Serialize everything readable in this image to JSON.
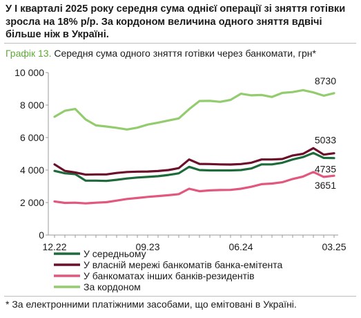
{
  "headline": "У І кварталі 2025 року середня сума однієї операції зі зняття готівки зросла на 18% р/р. За кордоном величина одного зняття вдвічі більше ніж в Україні.",
  "figure_number": "Графік 13.",
  "figure_caption": "Середня сума одного зняття готівки через банкомати, грн*",
  "footnote": "* За електронними платіжними засобами, що емітовані в Україні.",
  "colors": {
    "average": "#1d6b3b",
    "own_network": "#6b0f2a",
    "other_banks": "#e2577e",
    "abroad": "#93cc6e",
    "axis": "#9a9a9a"
  },
  "chart_data": {
    "type": "line",
    "title": "Середня сума одного зняття готівки через банкомати, грн*",
    "x": [
      "12.22",
      "01.23",
      "02.23",
      "03.23",
      "04.23",
      "05.23",
      "06.23",
      "07.23",
      "08.23",
      "09.23",
      "10.23",
      "11.23",
      "12.23",
      "01.24",
      "02.24",
      "03.24",
      "04.24",
      "05.24",
      "06.24",
      "07.24",
      "08.24",
      "09.24",
      "10.24",
      "11.24",
      "12.24",
      "01.25",
      "02.25",
      "03.25"
    ],
    "x_tick_labels": [
      "12.22",
      "09.23",
      "06.24",
      "03.25"
    ],
    "ylim": [
      0,
      10000
    ],
    "y_ticks": [
      0,
      2000,
      4000,
      6000,
      8000,
      10000
    ],
    "y_tick_labels": [
      "0",
      "2 000",
      "4 000",
      "6 000",
      "8 000",
      "10 000"
    ],
    "grid": false,
    "legend_position": "bottom-left",
    "series": [
      {
        "key": "average",
        "name": "У середньому",
        "values": [
          3950,
          3800,
          3750,
          3350,
          3350,
          3330,
          3400,
          3480,
          3540,
          3580,
          3620,
          3700,
          3800,
          4200,
          4000,
          3980,
          3980,
          3980,
          4000,
          4100,
          4350,
          4350,
          4450,
          4650,
          4800,
          5050,
          4750,
          4735
        ]
      },
      {
        "key": "own_network",
        "name": "У власній мережі банкоматів банка-емітента",
        "values": [
          4350,
          3950,
          3850,
          3720,
          3730,
          3730,
          3820,
          3880,
          3900,
          3910,
          3940,
          4000,
          4120,
          4650,
          4380,
          4370,
          4350,
          4340,
          4370,
          4450,
          4650,
          4650,
          4680,
          4900,
          5000,
          5350,
          4950,
          5033
        ]
      },
      {
        "key": "other_banks",
        "name": "У банкоматах інших банків-резидентів",
        "values": [
          2070,
          1980,
          1990,
          1950,
          1990,
          2020,
          2120,
          2220,
          2280,
          2350,
          2400,
          2450,
          2520,
          2850,
          2700,
          2750,
          2770,
          2780,
          2850,
          2970,
          3130,
          3170,
          3250,
          3450,
          3600,
          3880,
          3580,
          3651
        ]
      },
      {
        "key": "abroad",
        "name": "За кордоном",
        "values": [
          7280,
          7650,
          7760,
          7120,
          6750,
          6680,
          6600,
          6500,
          6610,
          6800,
          6920,
          7050,
          7180,
          7750,
          8250,
          8260,
          8200,
          8320,
          8700,
          8600,
          8620,
          8500,
          8750,
          8800,
          8920,
          8780,
          8580,
          8730
        ]
      }
    ],
    "end_labels": [
      {
        "series": "abroad",
        "text": "8730"
      },
      {
        "series": "own_network",
        "text": "5033"
      },
      {
        "series": "average",
        "text": "4735"
      },
      {
        "series": "other_banks",
        "text": "3651"
      }
    ]
  }
}
